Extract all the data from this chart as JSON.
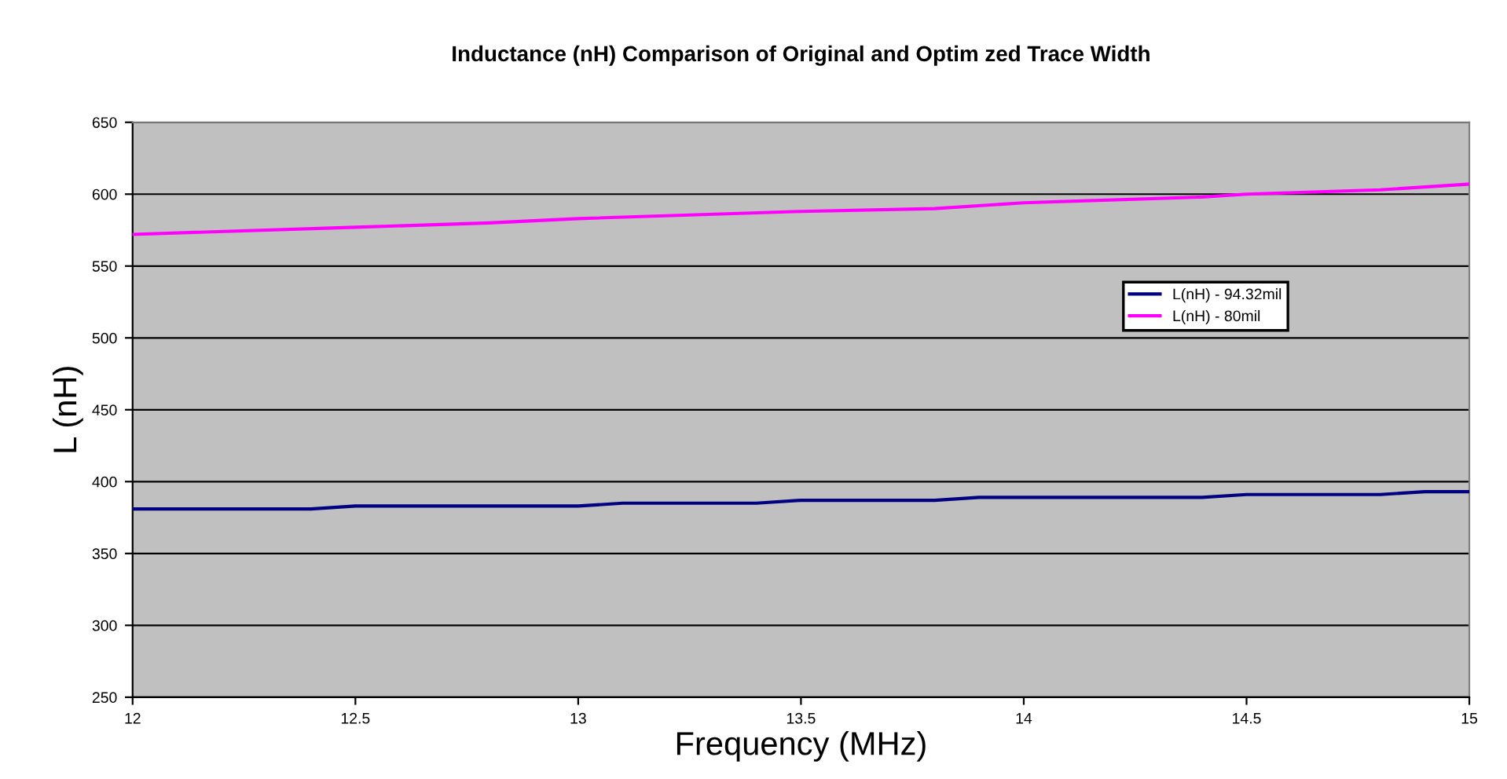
{
  "chart_data": {
    "type": "line",
    "title": "Inductance (nH) Comparison of Original and Optim zed Trace Width",
    "xlabel": "Frequency (MHz)",
    "ylabel": "L (nH)",
    "xlim": [
      12,
      15
    ],
    "xticks": [
      12,
      12.5,
      13,
      13.5,
      14,
      14.5,
      15
    ],
    "ylim": [
      250,
      650
    ],
    "yticks": [
      250,
      300,
      350,
      400,
      450,
      500,
      550,
      600,
      650
    ],
    "grid": "y",
    "legend": "right",
    "marker": "none",
    "line_style": "solid",
    "series": [
      {
        "name": "L(nH) - 94.32mil",
        "color": "#000080",
        "x": [
          12,
          12.4,
          12.5,
          13.0,
          13.1,
          13.4,
          13.5,
          13.8,
          13.9,
          14.4,
          14.5,
          14.8,
          14.9,
          15
        ],
        "values": [
          381,
          381,
          383,
          383,
          385,
          385,
          387,
          387,
          389,
          389,
          391,
          391,
          393,
          393
        ]
      },
      {
        "name": "L(nH) - 80mil",
        "color": "#ff00ff",
        "x": [
          12,
          12.5,
          12.8,
          13.0,
          13.5,
          13.8,
          14.0,
          14.4,
          14.5,
          14.8,
          15
        ],
        "values": [
          572,
          577,
          580,
          583,
          588,
          590,
          594,
          598,
          600,
          603,
          607
        ]
      }
    ]
  }
}
